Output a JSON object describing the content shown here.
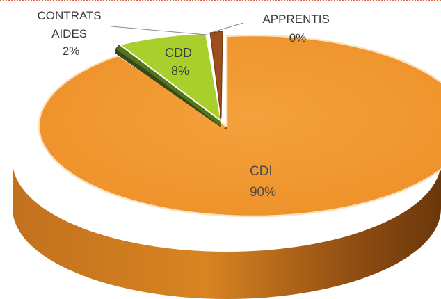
{
  "chart_data": {
    "type": "pie",
    "style": "3d-exploded",
    "slices": [
      {
        "label": "CDI",
        "value": 90,
        "display": "90%",
        "color": "#f0962e"
      },
      {
        "label": "CONTRATS AIDES",
        "value": 2,
        "display": "2%",
        "color": "#4e6b2a"
      },
      {
        "label": "CDD",
        "value": 8,
        "display": "8%",
        "color": "#a9cf2c"
      },
      {
        "label": "APPRENTIS",
        "value": 0,
        "display": "0%",
        "color": "#9c4f1c"
      }
    ]
  },
  "labels": {
    "cdi": [
      "CDI",
      "90%"
    ],
    "contrats_aides": [
      "CONTRATS",
      "AIDES",
      "2%"
    ],
    "cdd": [
      "CDD",
      "8%"
    ],
    "apprentis": [
      "APPRENTIS",
      "0%"
    ]
  }
}
